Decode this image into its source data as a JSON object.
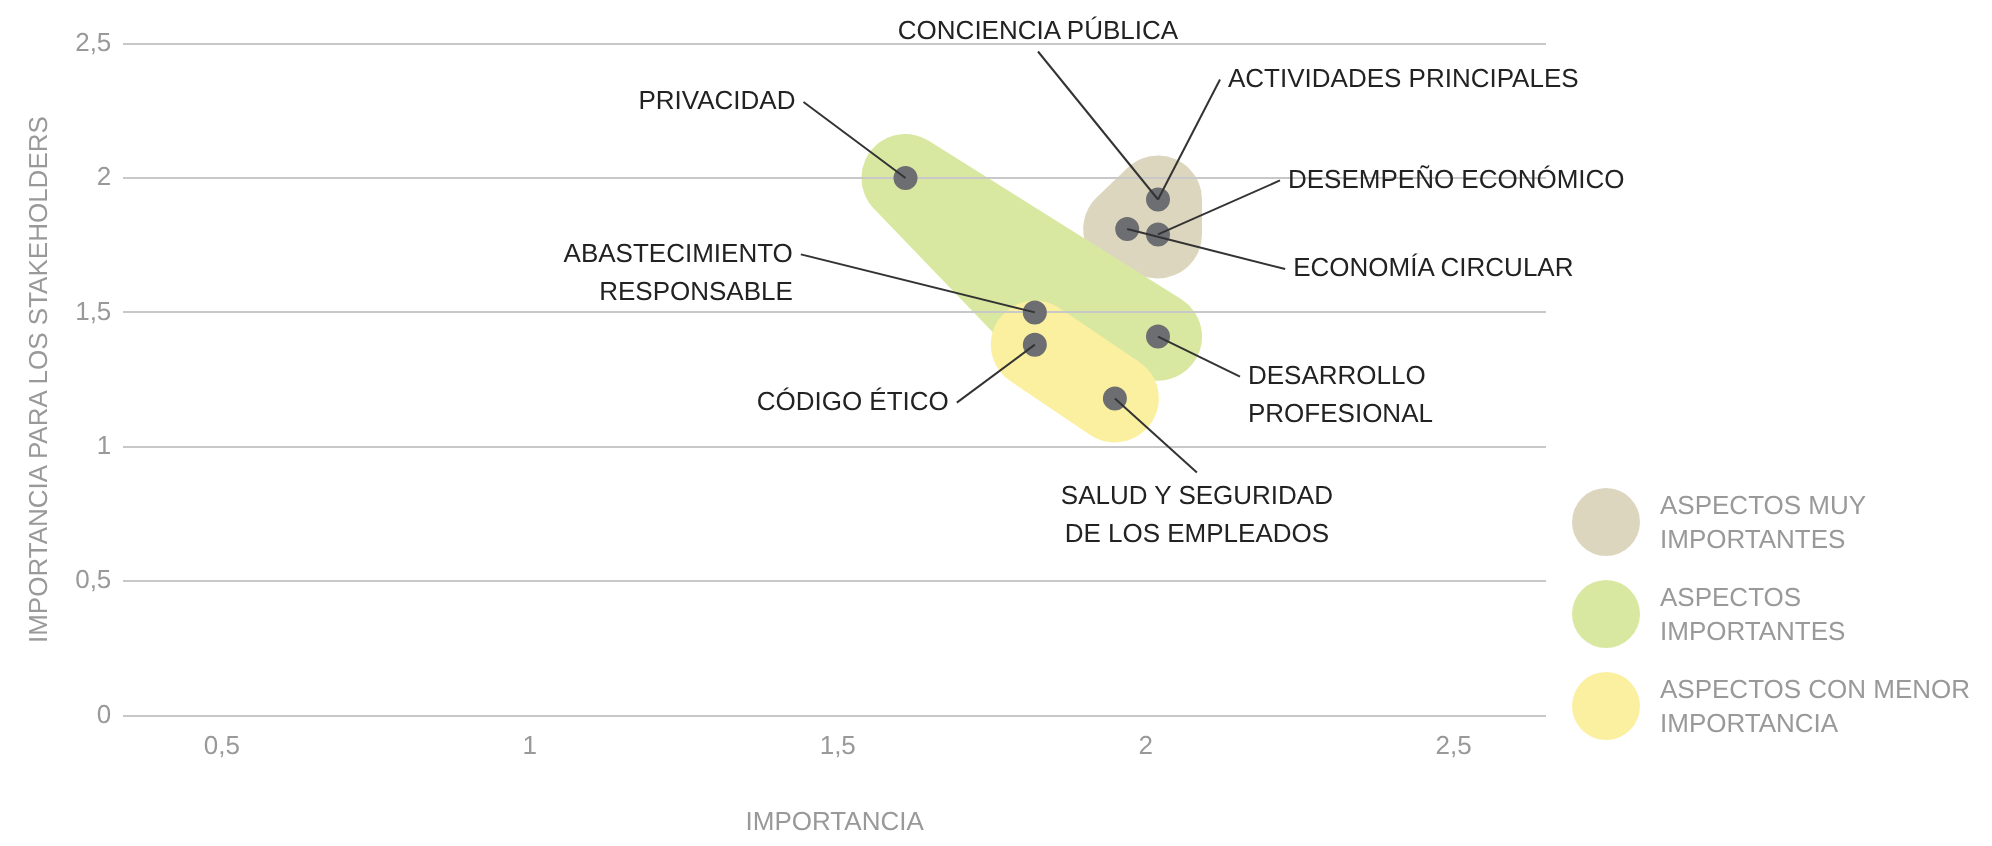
{
  "chart_data": {
    "type": "scatter",
    "xlabel": "IMPORTANCIA",
    "ylabel": "IMPORTANCIA PARA LOS STAKEHOLDERS",
    "xlim": [
      0.34,
      2.65
    ],
    "ylim": [
      0,
      2.5
    ],
    "xticks": [
      {
        "value": 0.5,
        "label": "0,5"
      },
      1,
      {
        "value": 1.5,
        "label": "1,5"
      },
      2,
      {
        "value": 2.5,
        "label": "2,5"
      }
    ],
    "yticks": [
      0,
      {
        "value": 0.5,
        "label": "0,5"
      },
      1,
      {
        "value": 1.5,
        "label": "1,5"
      },
      2,
      {
        "value": 2.5,
        "label": "2,5"
      }
    ],
    "grid": "y",
    "legend": "right",
    "marker": "circle",
    "series": [
      {
        "name": "ASPECTOS MUY IMPORTANTES",
        "color": "#6d6e71",
        "x": [
          2.02,
          2.02,
          1.97
        ],
        "values": [
          1.92,
          1.79,
          1.81
        ]
      },
      {
        "name": "ASPECTOS IMPORTANTES",
        "color": "#6d6e71",
        "x": [
          1.61,
          1.82,
          2.02
        ],
        "values": [
          2.0,
          1.5,
          1.41
        ]
      },
      {
        "name": "ASPECTOS CON MENOR IMPORTANCIA",
        "color": "#6d6e71",
        "x": [
          1.82,
          1.95
        ],
        "values": [
          1.38,
          1.18
        ]
      }
    ],
    "annotations": [
      {
        "text": "PRIVACIDAD",
        "x": 1.61,
        "y": 2.0
      },
      {
        "text": "CONCIENCIA PÚBLICA",
        "x": 2.02,
        "y": 1.92
      },
      {
        "text": "ACTIVIDADES PRINCIPALES",
        "x": 2.02,
        "y": 1.92
      },
      {
        "text": "DESEMPEÑO ECONÓMICO",
        "x": 2.02,
        "y": 1.79
      },
      {
        "text": "ECONOMÍA CIRCULAR",
        "x": 1.97,
        "y": 1.81
      },
      {
        "text": "ABASTECIMIENTO\nRESPONSABLE",
        "x": 1.82,
        "y": 1.5
      },
      {
        "text": "DESARROLLO\nPROFESIONAL",
        "x": 2.02,
        "y": 1.41
      },
      {
        "text": "CÓDIGO ÉTICO",
        "x": 1.82,
        "y": 1.38
      },
      {
        "text": "SALUD Y SEGURIDAD\nDE LOS EMPLEADOS",
        "x": 1.95,
        "y": 1.18
      }
    ]
  }
}
